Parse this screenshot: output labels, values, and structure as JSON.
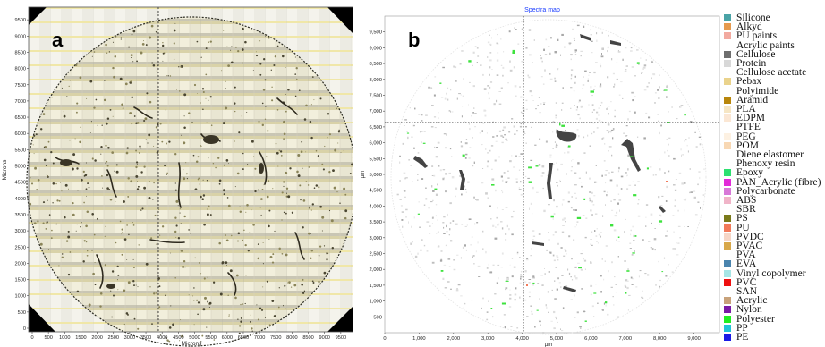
{
  "top_caption_fragment": "(a)",
  "panel_a": {
    "label": "a",
    "ylabel": "Microns",
    "xlabel": "Microns",
    "x_ticks": [
      "0",
      "500",
      "1000",
      "1500",
      "2000",
      "2500",
      "3000",
      "3500",
      "4000",
      "4500",
      "5000",
      "5500",
      "6000",
      "6500",
      "7000",
      "7500",
      "8000",
      "8500",
      "9000",
      "9500"
    ],
    "y_ticks": [
      "0",
      "500",
      "1000",
      "1500",
      "2000",
      "2500",
      "3000",
      "3500",
      "4000",
      "4500",
      "5000",
      "5500",
      "6000",
      "6500",
      "7000",
      "7500",
      "8000",
      "8500",
      "9000",
      "9500"
    ]
  },
  "panel_b": {
    "label": "b",
    "title": "Spectra map",
    "ylabel": "µm",
    "xlabel": "µm",
    "x_ticks": [
      "0",
      "1,000",
      "2,000",
      "3,000",
      "4,000",
      "5,000",
      "6,000",
      "7,000",
      "8,000",
      "9,000"
    ],
    "y_ticks": [
      "0",
      "500",
      "1,000",
      "1,500",
      "2,000",
      "2,500",
      "3,000",
      "3,500",
      "4,000",
      "4,500",
      "5,000",
      "5,500",
      "6,000",
      "6,500",
      "7,000",
      "7,500",
      "8,000",
      "8,500",
      "9,000",
      "9,500"
    ]
  },
  "legend": [
    {
      "label": "Silicone",
      "color": "#4aa3a6"
    },
    {
      "label": "Alkyd",
      "color": "#e69a4e"
    },
    {
      "label": "PU paints",
      "color": "#f2aaa0"
    },
    {
      "label": "Acrylic paints",
      "color": "#ffffff"
    },
    {
      "label": "Cellulose",
      "color": "#6e6e6e"
    },
    {
      "label": "Protein",
      "color": "#d8d8d8"
    },
    {
      "label": "Cellulose acetate",
      "color": "#ffffff"
    },
    {
      "label": "Pebax",
      "color": "#ead38c"
    },
    {
      "label": "Polyimide",
      "color": "#ffffff"
    },
    {
      "label": "Aramid",
      "color": "#b8860b"
    },
    {
      "label": "PLA",
      "color": "#f6e6c4"
    },
    {
      "label": "EDPM",
      "color": "#fbe7d4"
    },
    {
      "label": "PTFE",
      "color": "#ffffff"
    },
    {
      "label": "PEG",
      "color": "#fdf1e2"
    },
    {
      "label": "POM",
      "color": "#f8d8b4"
    },
    {
      "label": "Diene elastomer",
      "color": "#ffffff"
    },
    {
      "label": "Phenoxy resin",
      "color": "#ffffff"
    },
    {
      "label": "Epoxy",
      "color": "#2de070"
    },
    {
      "label": "PAN_Acrylic (fibre)",
      "color": "#e22ad8"
    },
    {
      "label": "Polycarbonate",
      "color": "#d878d8"
    },
    {
      "label": "ABS",
      "color": "#f0b4c8"
    },
    {
      "label": "SBR",
      "color": "#ffffff"
    },
    {
      "label": "PS",
      "color": "#7a7a1a"
    },
    {
      "label": "PU",
      "color": "#f27a5a"
    },
    {
      "label": "PVDC",
      "color": "#f6d6c6"
    },
    {
      "label": "PVAC",
      "color": "#d8a84a"
    },
    {
      "label": "PVA",
      "color": "#ffffff"
    },
    {
      "label": "EVA",
      "color": "#4a84ae"
    },
    {
      "label": "Vinyl copolymer",
      "color": "#a6e6e6"
    },
    {
      "label": "PVC",
      "color": "#ee1010"
    },
    {
      "label": "SAN",
      "color": "#ffffff"
    },
    {
      "label": "Acrylic",
      "color": "#c8a27a"
    },
    {
      "label": "Nylon",
      "color": "#7a1aa6"
    },
    {
      "label": "Polyester",
      "color": "#22ee22"
    },
    {
      "label": "PP",
      "color": "#22c4d8"
    },
    {
      "label": "PE",
      "color": "#1a1ae6"
    }
  ]
}
